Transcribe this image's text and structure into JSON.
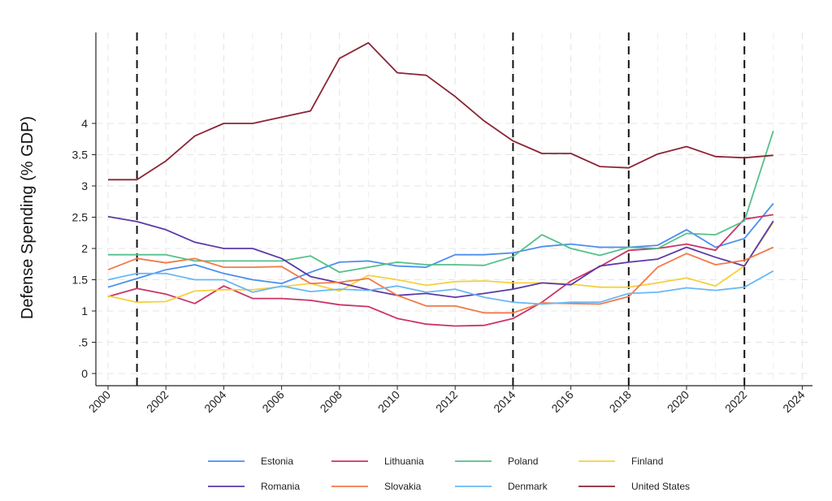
{
  "chart_data": {
    "type": "line",
    "title": "",
    "xlabel": "",
    "ylabel": "Defense Spending (% GDP)",
    "xlim": [
      2000,
      2024
    ],
    "ylim": [
      0,
      5.45
    ],
    "x_ticks": [
      "2000",
      "2002",
      "2004",
      "2006",
      "2008",
      "2010",
      "2012",
      "2014",
      "2016",
      "2018",
      "2020",
      "2022",
      "2024"
    ],
    "y_ticks": [
      {
        "v": 0,
        "label": "0"
      },
      {
        "v": 0.5,
        "label": ".5"
      },
      {
        "v": 1,
        "label": "1"
      },
      {
        "v": 1.5,
        "label": "1.5"
      },
      {
        "v": 2,
        "label": "2"
      },
      {
        "v": 2.5,
        "label": "2.5"
      },
      {
        "v": 3,
        "label": "3"
      },
      {
        "v": 3.5,
        "label": "3.5"
      },
      {
        "v": 4,
        "label": "4"
      }
    ],
    "grid": true,
    "reference_lines_x": [
      2001,
      2014,
      2018,
      2022
    ],
    "legend_position": "bottom",
    "x": [
      2000,
      2001,
      2002,
      2003,
      2004,
      2005,
      2006,
      2007,
      2008,
      2009,
      2010,
      2011,
      2012,
      2013,
      2014,
      2015,
      2016,
      2017,
      2018,
      2019,
      2020,
      2021,
      2022,
      2023
    ],
    "series": [
      {
        "name": "Estonia",
        "color": "#4a8ef0",
        "values": [
          1.38,
          1.52,
          1.66,
          1.74,
          1.6,
          1.5,
          1.44,
          1.62,
          1.78,
          1.8,
          1.72,
          1.7,
          1.9,
          1.9,
          1.93,
          2.03,
          2.07,
          2.02,
          2.02,
          2.05,
          2.3,
          2.02,
          2.16,
          2.72
        ]
      },
      {
        "name": "Lithuania",
        "color": "#cc3366",
        "values": [
          1.23,
          1.36,
          1.27,
          1.12,
          1.4,
          1.2,
          1.2,
          1.17,
          1.1,
          1.07,
          0.88,
          0.79,
          0.76,
          0.77,
          0.88,
          1.14,
          1.48,
          1.71,
          1.97,
          2.0,
          2.07,
          1.97,
          2.47,
          2.54
        ]
      },
      {
        "name": "Poland",
        "color": "#55c08a",
        "values": [
          1.9,
          1.9,
          1.9,
          1.8,
          1.8,
          1.8,
          1.8,
          1.88,
          1.62,
          1.7,
          1.78,
          1.74,
          1.74,
          1.73,
          1.87,
          2.22,
          2.0,
          1.89,
          2.02,
          2.0,
          2.24,
          2.22,
          2.44,
          3.88
        ]
      },
      {
        "name": "Finland",
        "color": "#f5d040",
        "values": [
          1.24,
          1.14,
          1.15,
          1.32,
          1.34,
          1.34,
          1.39,
          1.44,
          1.32,
          1.57,
          1.5,
          1.41,
          1.47,
          1.48,
          1.45,
          1.45,
          1.43,
          1.38,
          1.38,
          1.45,
          1.53,
          1.4,
          1.72,
          2.42
        ]
      },
      {
        "name": "Romania",
        "color": "#5b3aa8",
        "values": [
          2.51,
          2.43,
          2.3,
          2.1,
          2.0,
          2.0,
          1.84,
          1.55,
          1.45,
          1.34,
          1.25,
          1.28,
          1.22,
          1.28,
          1.35,
          1.45,
          1.42,
          1.72,
          1.78,
          1.83,
          2.02,
          1.86,
          1.72,
          2.44
        ]
      },
      {
        "name": "Slovakia",
        "color": "#f27a4a",
        "values": [
          1.66,
          1.84,
          1.77,
          1.84,
          1.7,
          1.7,
          1.71,
          1.44,
          1.46,
          1.52,
          1.25,
          1.08,
          1.08,
          0.97,
          0.97,
          1.13,
          1.12,
          1.11,
          1.23,
          1.7,
          1.92,
          1.74,
          1.81,
          2.02
        ]
      },
      {
        "name": "Denmark",
        "color": "#6ab8f5",
        "values": [
          1.5,
          1.6,
          1.6,
          1.5,
          1.5,
          1.3,
          1.4,
          1.31,
          1.35,
          1.33,
          1.4,
          1.3,
          1.35,
          1.22,
          1.14,
          1.11,
          1.14,
          1.14,
          1.28,
          1.3,
          1.37,
          1.33,
          1.38,
          1.64
        ]
      },
      {
        "name": "United States",
        "color": "#8b2535",
        "values": [
          3.1,
          3.1,
          3.4,
          3.8,
          4.0,
          4.0,
          4.1,
          4.2,
          5.04,
          5.29,
          4.81,
          4.77,
          4.43,
          4.04,
          3.72,
          3.52,
          3.52,
          3.31,
          3.29,
          3.51,
          3.63,
          3.47,
          3.45,
          3.49
        ]
      }
    ]
  }
}
